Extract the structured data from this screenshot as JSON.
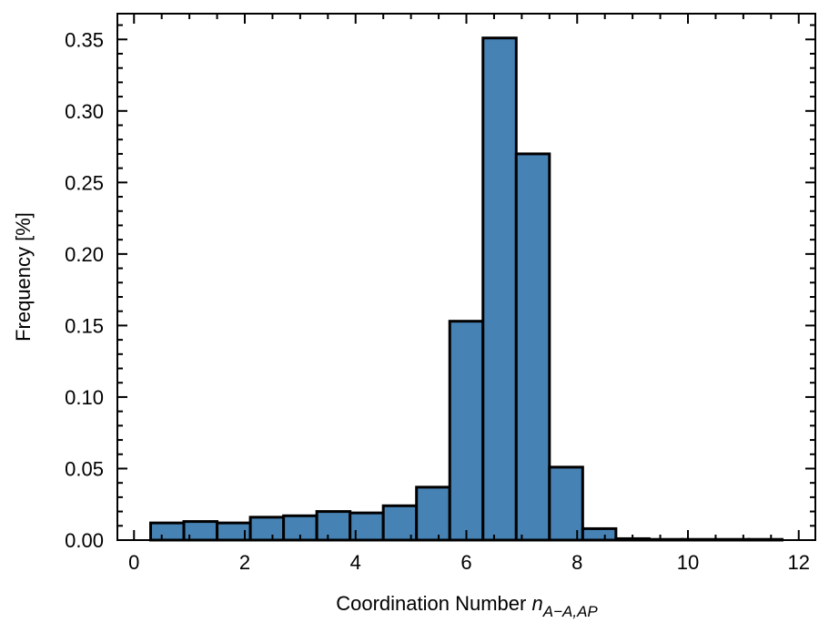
{
  "chart_data": {
    "type": "bar",
    "bin_edges": [
      0.3,
      0.9,
      1.5,
      2.1,
      2.7,
      3.3,
      3.9,
      4.5,
      5.1,
      5.7,
      6.3,
      6.9,
      7.5,
      8.1,
      8.7,
      9.3,
      9.9,
      10.5,
      11.1,
      11.7
    ],
    "values": [
      0.012,
      0.013,
      0.012,
      0.016,
      0.017,
      0.02,
      0.019,
      0.024,
      0.037,
      0.153,
      0.351,
      0.27,
      0.051,
      0.008,
      0.001,
      0.0005,
      0.0005,
      0.0005,
      0.0005
    ],
    "title": "",
    "xlabel_main": "Coordination Number ",
    "xlabel_var": "n",
    "xlabel_sub": "A−A,AP",
    "ylabel": "Frequency [%]",
    "xlim": [
      -0.3,
      12.3
    ],
    "ylim": [
      0,
      0.368
    ],
    "xticks": [
      0,
      2,
      4,
      6,
      8,
      10,
      12
    ],
    "xtick_labels": [
      "0",
      "2",
      "4",
      "6",
      "8",
      "10",
      "12"
    ],
    "yticks": [
      0,
      0.05,
      0.1,
      0.15,
      0.2,
      0.25,
      0.3,
      0.35
    ],
    "ytick_labels": [
      "0.00",
      "0.05",
      "0.10",
      "0.15",
      "0.20",
      "0.25",
      "0.30",
      "0.35"
    ],
    "grid": false,
    "bar_color": "#4682b4",
    "edge_color": "#000000"
  }
}
